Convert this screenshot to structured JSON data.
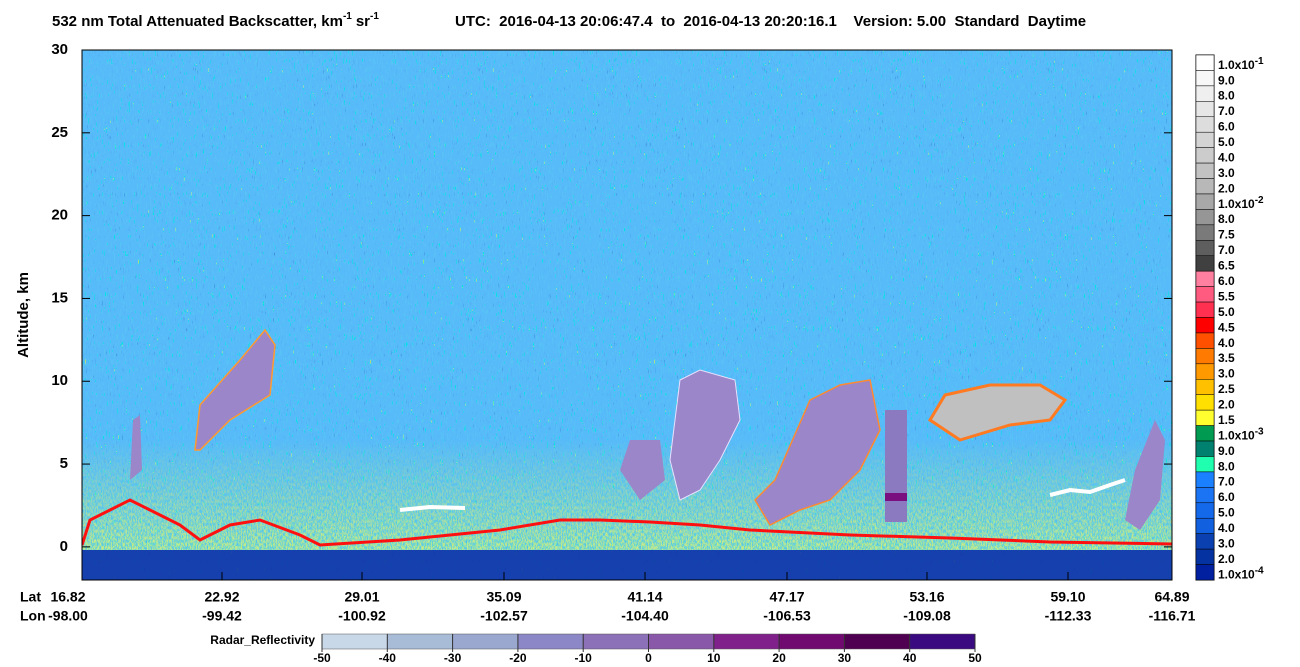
{
  "chart_data": {
    "type": "curtain",
    "title": {
      "text": "532 nm Total Attenuated Backscatter, km",
      "exp": "-1",
      "unit": "sr",
      "unit_exp": "-1"
    },
    "info": "UTC:  2016-04-13 20:06:47.4  to  2016-04-13 20:20:16.1    Version: 5.00  Standard  Daytime",
    "ylabel": "Altitude, km",
    "ylim": [
      -2,
      30
    ],
    "yticks": [
      0,
      5,
      10,
      15,
      20,
      25,
      30
    ],
    "x_row_labels": [
      "Lat",
      "Lon"
    ],
    "lat": [
      "16.82",
      "22.92",
      "29.01",
      "35.09",
      "41.14",
      "47.17",
      "53.16",
      "59.10",
      "64.89"
    ],
    "lon": [
      "-98.00",
      "-99.42",
      "-100.92",
      "-102.57",
      "-104.40",
      "-106.53",
      "-109.08",
      "-112.33",
      "-116.71"
    ],
    "colorbar": {
      "labels": [
        {
          "text": "1.0x10",
          "exp": "-1"
        },
        {
          "text": "9.0"
        },
        {
          "text": "8.0"
        },
        {
          "text": "7.0"
        },
        {
          "text": "6.0"
        },
        {
          "text": "5.0"
        },
        {
          "text": "4.0"
        },
        {
          "text": "3.0"
        },
        {
          "text": "2.0"
        },
        {
          "text": "1.0x10",
          "exp": "-2"
        },
        {
          "text": "8.0"
        },
        {
          "text": "7.5"
        },
        {
          "text": "7.0"
        },
        {
          "text": "6.5"
        },
        {
          "text": "6.0"
        },
        {
          "text": "5.5"
        },
        {
          "text": "5.0"
        },
        {
          "text": "4.5"
        },
        {
          "text": "4.0"
        },
        {
          "text": "3.5"
        },
        {
          "text": "3.0"
        },
        {
          "text": "2.5"
        },
        {
          "text": "2.0"
        },
        {
          "text": "1.5"
        },
        {
          "text": "1.0x10",
          "exp": "-3"
        },
        {
          "text": "9.0"
        },
        {
          "text": "8.0"
        },
        {
          "text": "7.0"
        },
        {
          "text": "6.0"
        },
        {
          "text": "5.0"
        },
        {
          "text": "4.0"
        },
        {
          "text": "3.0"
        },
        {
          "text": "2.0"
        },
        {
          "text": "1.0x10",
          "exp": "-4"
        }
      ],
      "colors": [
        "#ffffff",
        "#f7f7f7",
        "#efefef",
        "#e6e6e6",
        "#dddddd",
        "#d4d4d4",
        "#cccccc",
        "#c2c2c2",
        "#b8b8b8",
        "#a8a8a8",
        "#969696",
        "#7a7a7a",
        "#5e5e5e",
        "#404040",
        "#ff7fa0",
        "#ff5a80",
        "#ff3050",
        "#ff0000",
        "#ff5000",
        "#ff7a00",
        "#ff9900",
        "#ffc000",
        "#ffe000",
        "#ffff30",
        "#009a50",
        "#00806e",
        "#20ffb0",
        "#1a80ff",
        "#1a74f4",
        "#1468ea",
        "#1060e0",
        "#0a40b0",
        "#0432a0",
        "#0020a0"
      ]
    },
    "radar_colorbar": {
      "label": "Radar_Reflectivity",
      "ticks": [
        -50,
        -40,
        -30,
        -20,
        -10,
        0,
        10,
        20,
        30,
        40,
        50
      ],
      "colors": [
        "#c8d8e8",
        "#a8bcd8",
        "#9aa8d0",
        "#8c88c8",
        "#8c70b8",
        "#8a58a8",
        "#80208a",
        "#700a70",
        "#500050",
        "#3a0a80"
      ]
    }
  }
}
